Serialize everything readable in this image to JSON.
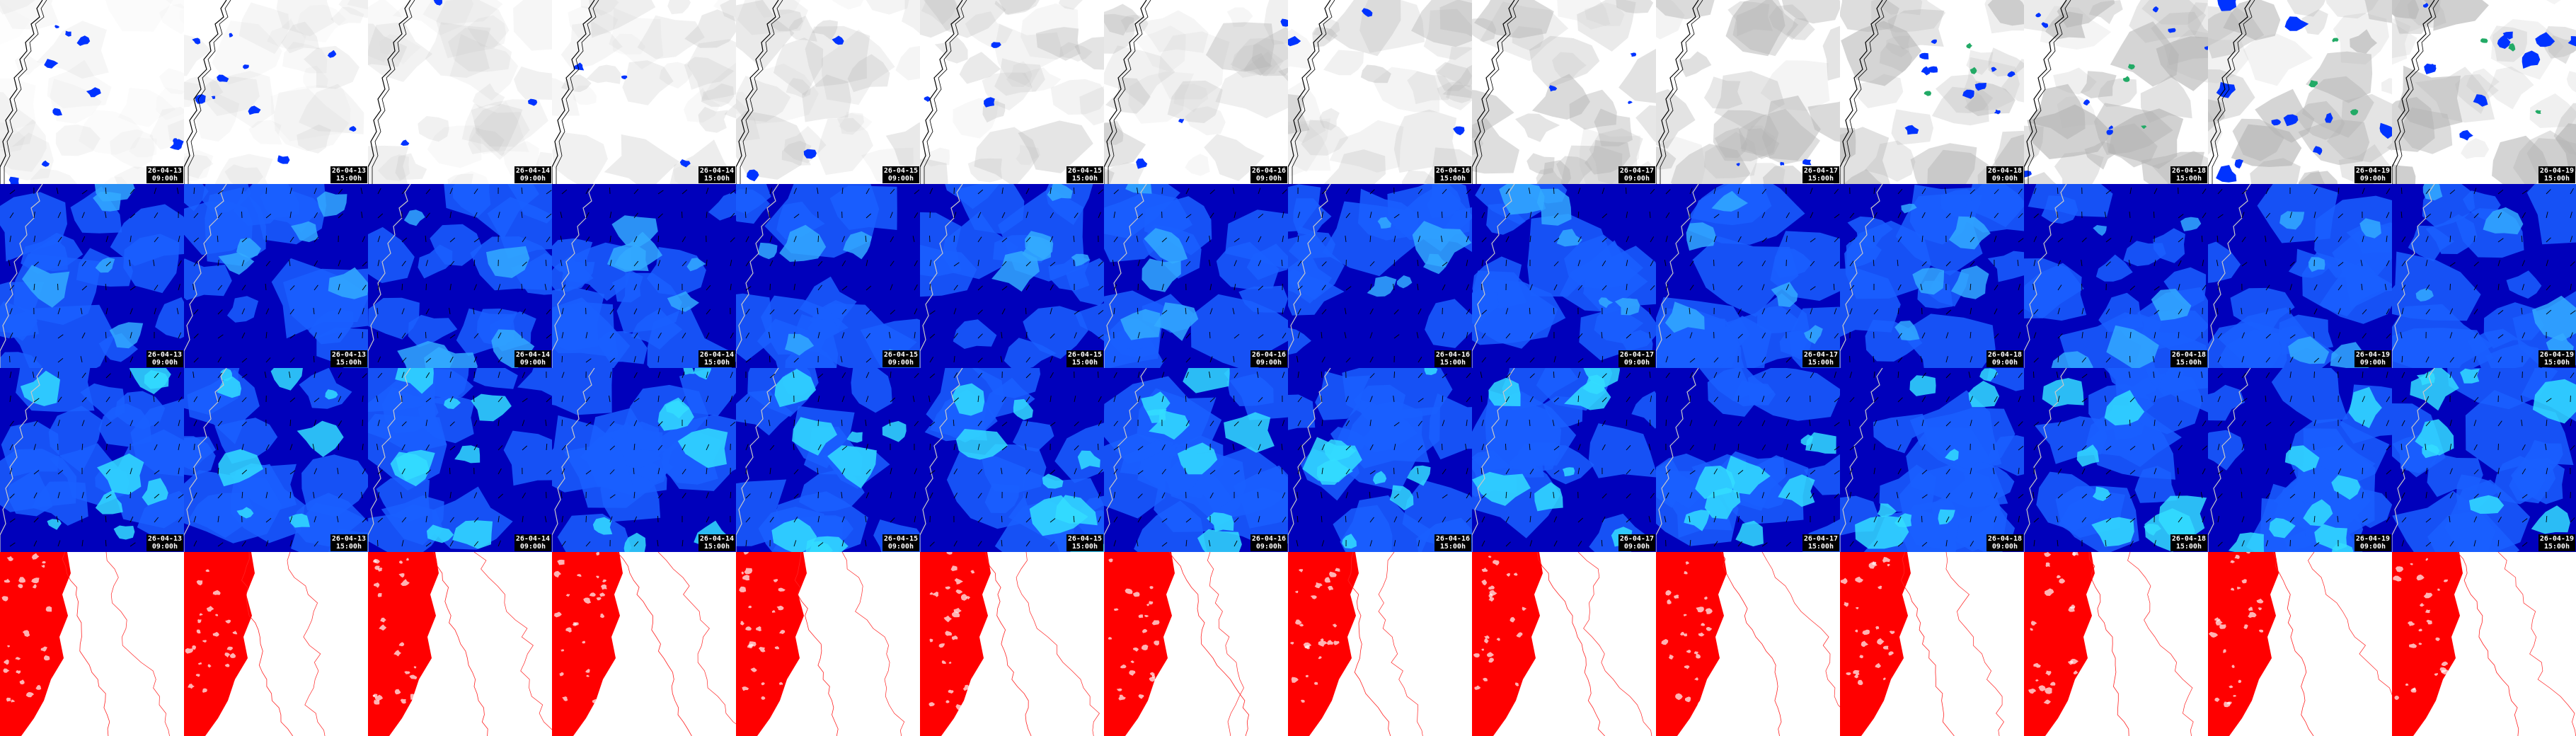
{
  "frames": [
    {
      "date": "26-04-13",
      "time": "09:00h"
    },
    {
      "date": "26-04-13",
      "time": "15:00h"
    },
    {
      "date": "26-04-14",
      "time": "09:00h"
    },
    {
      "date": "26-04-14",
      "time": "15:00h"
    },
    {
      "date": "26-04-15",
      "time": "09:00h"
    },
    {
      "date": "26-04-15",
      "time": "15:00h"
    },
    {
      "date": "26-04-16",
      "time": "09:00h"
    },
    {
      "date": "26-04-16",
      "time": "15:00h"
    },
    {
      "date": "26-04-17",
      "time": "09:00h"
    },
    {
      "date": "26-04-17",
      "time": "15:00h"
    },
    {
      "date": "26-04-18",
      "time": "09:00h"
    },
    {
      "date": "26-04-18",
      "time": "15:00h"
    },
    {
      "date": "26-04-19",
      "time": "09:00h"
    },
    {
      "date": "26-04-19",
      "time": "15:00h"
    }
  ],
  "rows": [
    {
      "id": "cloud-precip",
      "stamped": true,
      "colors": {
        "background": "#ffffff",
        "cloud": "#b4b4b4",
        "precip": "#0033ff",
        "heavy": "#22aa66",
        "coast": "#000000"
      }
    },
    {
      "id": "wind-low",
      "stamped": true,
      "colors": {
        "weak": "#0000bb",
        "moderate": "#1a5fff",
        "strong": "#33aaff",
        "coast": "#c8c8c8",
        "barb": "#000000"
      }
    },
    {
      "id": "wind-high",
      "stamped": true,
      "colors": {
        "weak": "#0000bb",
        "moderate": "#1a5fff",
        "strong": "#33ddff",
        "coast": "#c8c8c8",
        "barb": "#000000"
      }
    },
    {
      "id": "contours",
      "stamped": false,
      "colors": {
        "fill": "#ff0000",
        "line": "#ff2222",
        "background": "#ffffff"
      }
    }
  ]
}
